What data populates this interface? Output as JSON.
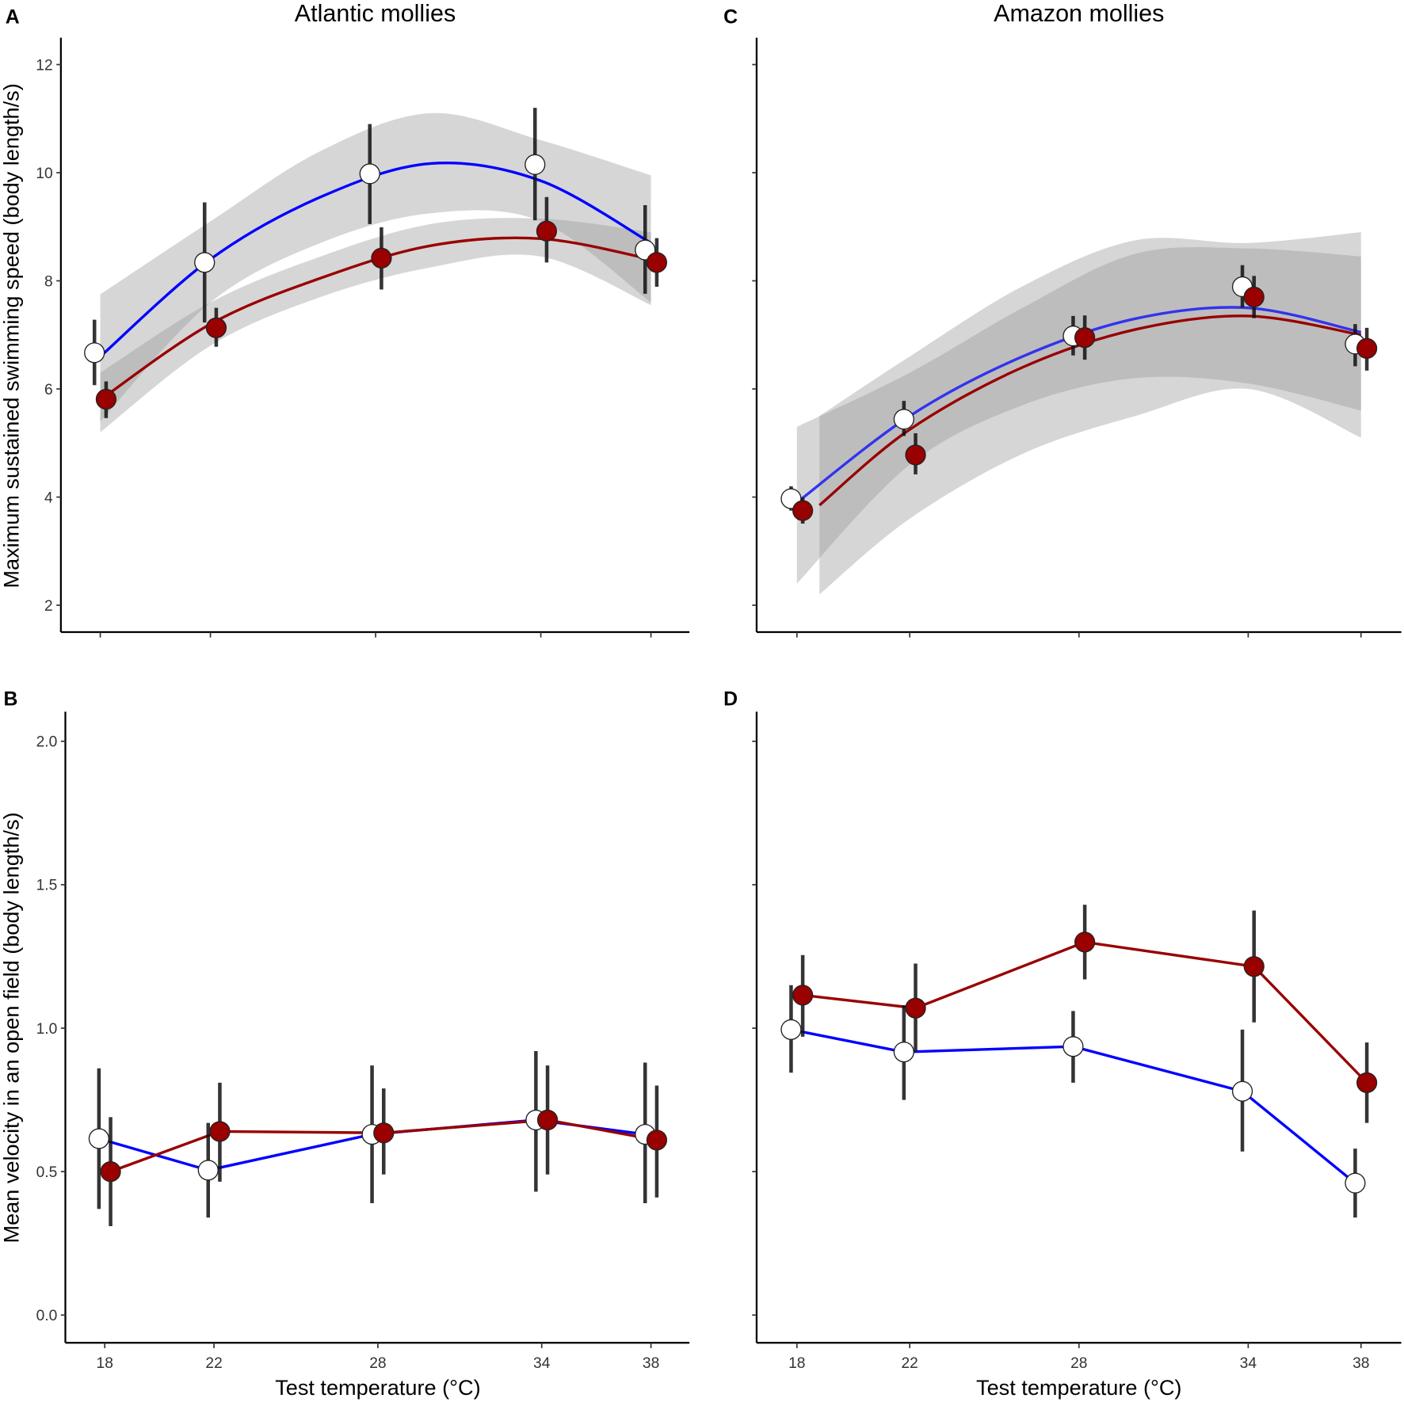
{
  "chart_data": [
    {
      "panel": "A",
      "type": "scatter",
      "title": "Atlantic mollies",
      "xlabel": "",
      "ylabel": "Maximum sustained swimming speed (body length/s)",
      "x": [
        18,
        22,
        28,
        34,
        38
      ],
      "xticks": [
        "18",
        "22",
        "28",
        "34",
        "38"
      ],
      "show_xtick_labels": false,
      "yticks": [
        "2",
        "4",
        "6",
        "8",
        "10",
        "12"
      ],
      "show_ytick_labels": true,
      "ylim": [
        2,
        12
      ],
      "series": [
        {
          "color": "#0000ff",
          "marker_fill": "#ffffff",
          "values": [
            6.67,
            8.34,
            9.98,
            10.15,
            8.57
          ],
          "err_low": [
            6.07,
            7.23,
            9.05,
            9.12,
            7.76
          ],
          "err_high": [
            7.28,
            9.45,
            10.9,
            11.2,
            9.4
          ],
          "fit": {
            "x": [
              18,
              22,
              26,
              30,
              34,
              38
            ],
            "y": [
              6.6,
              8.4,
              9.55,
              10.17,
              9.85,
              8.7
            ],
            "lower": [
              5.4,
              7.6,
              8.7,
              9.25,
              9.1,
              7.6
            ],
            "upper": [
              7.75,
              9.1,
              10.4,
              11.1,
              10.6,
              9.95
            ]
          }
        },
        {
          "color": "#990000",
          "marker_fill": "#990000",
          "values": [
            5.81,
            7.13,
            8.42,
            8.92,
            8.34
          ],
          "err_low": [
            5.46,
            6.78,
            7.84,
            8.34,
            7.89
          ],
          "err_high": [
            6.14,
            7.5,
            8.99,
            9.55,
            8.79
          ],
          "fit": {
            "x": [
              18,
              22,
              26,
              30,
              34,
              38
            ],
            "y": [
              5.8,
              7.2,
              8.05,
              8.65,
              8.78,
              8.4
            ],
            "lower": [
              5.2,
              6.8,
              7.7,
              8.25,
              8.45,
              7.55
            ],
            "upper": [
              6.3,
              7.6,
              8.45,
              9.05,
              9.15,
              8.9
            ]
          }
        }
      ]
    },
    {
      "panel": "B",
      "type": "line",
      "title": "",
      "xlabel": "Test temperature (°C)",
      "ylabel": "Mean velocity in an open field (body length/s)",
      "x": [
        18,
        22,
        28,
        34,
        38
      ],
      "xticks": [
        "18",
        "22",
        "28",
        "34",
        "38"
      ],
      "show_xtick_labels": true,
      "yticks": [
        "0.0",
        "0.5",
        "1.0",
        "1.5",
        "2.0"
      ],
      "show_ytick_labels": true,
      "ylim": [
        0,
        2
      ],
      "series": [
        {
          "color": "#0000ff",
          "marker_fill": "#ffffff",
          "values": [
            0.615,
            0.505,
            0.63,
            0.68,
            0.63
          ],
          "err_low": [
            0.37,
            0.34,
            0.39,
            0.43,
            0.39
          ],
          "err_high": [
            0.86,
            0.67,
            0.87,
            0.92,
            0.88
          ]
        },
        {
          "color": "#990000",
          "marker_fill": "#990000",
          "values": [
            0.5,
            0.64,
            0.635,
            0.68,
            0.61
          ],
          "err_low": [
            0.31,
            0.465,
            0.49,
            0.49,
            0.41
          ],
          "err_high": [
            0.69,
            0.81,
            0.79,
            0.87,
            0.8
          ]
        }
      ]
    },
    {
      "panel": "C",
      "type": "scatter",
      "title": "Amazon mollies",
      "xlabel": "",
      "ylabel": "",
      "x": [
        18,
        22,
        28,
        34,
        38
      ],
      "xticks": [
        "18",
        "22",
        "28",
        "34",
        "38"
      ],
      "show_xtick_labels": false,
      "yticks": [
        "2",
        "4",
        "6",
        "8",
        "10",
        "12"
      ],
      "show_ytick_labels": false,
      "ylim": [
        2,
        12
      ],
      "series": [
        {
          "color": "#3333ee",
          "marker_fill": "#ffffff",
          "values": [
            3.97,
            5.44,
            6.98,
            7.89,
            6.83
          ],
          "err_low": [
            3.75,
            5.13,
            6.62,
            7.51,
            6.42
          ],
          "err_high": [
            4.2,
            5.78,
            7.35,
            8.29,
            7.2
          ],
          "fit": {
            "x": [
              18,
              22,
              26,
              30,
              34,
              38
            ],
            "y": [
              3.9,
              5.5,
              6.6,
              7.3,
              7.5,
              7.05
            ],
            "lower": [
              2.4,
              4.6,
              5.7,
              6.2,
              6.1,
              5.6
            ],
            "upper": [
              5.3,
              6.3,
              7.5,
              8.5,
              8.6,
              8.45
            ]
          }
        },
        {
          "color": "#990000",
          "marker_fill": "#990000",
          "values": [
            3.75,
            4.78,
            6.95,
            7.7,
            6.75
          ],
          "err_low": [
            3.51,
            4.42,
            6.54,
            7.31,
            6.34
          ],
          "err_high": [
            3.99,
            5.18,
            7.36,
            8.09,
            7.13
          ],
          "fit": {
            "x": [
              18.8,
              22,
              26,
              30,
              34,
              38
            ],
            "y": [
              3.85,
              5.25,
              6.4,
              7.1,
              7.35,
              7.0
            ],
            "lower": [
              2.2,
              3.6,
              4.8,
              5.5,
              6.0,
              5.1
            ],
            "upper": [
              5.5,
              6.6,
              7.9,
              8.75,
              8.7,
              8.9
            ]
          }
        }
      ]
    },
    {
      "panel": "D",
      "type": "line",
      "title": "",
      "xlabel": "Test temperature (°C)",
      "ylabel": "",
      "x": [
        18,
        22,
        28,
        34,
        38
      ],
      "xticks": [
        "18",
        "22",
        "28",
        "34",
        "38"
      ],
      "show_xtick_labels": true,
      "yticks": [
        "0.0",
        "0.5",
        "1.0",
        "1.5",
        "2.0"
      ],
      "show_ytick_labels": false,
      "ylim": [
        0,
        2
      ],
      "series": [
        {
          "color": "#0000ff",
          "marker_fill": "#ffffff",
          "values": [
            0.995,
            0.917,
            0.936,
            0.78,
            0.46
          ],
          "err_low": [
            0.845,
            0.75,
            0.81,
            0.57,
            0.34
          ],
          "err_high": [
            1.15,
            1.08,
            1.06,
            0.995,
            0.58
          ]
        },
        {
          "color": "#990000",
          "marker_fill": "#990000",
          "values": [
            1.115,
            1.07,
            1.3,
            1.215,
            0.81
          ],
          "err_low": [
            0.97,
            0.92,
            1.17,
            1.02,
            0.67
          ],
          "err_high": [
            1.255,
            1.225,
            1.43,
            1.41,
            0.95
          ]
        }
      ]
    }
  ]
}
